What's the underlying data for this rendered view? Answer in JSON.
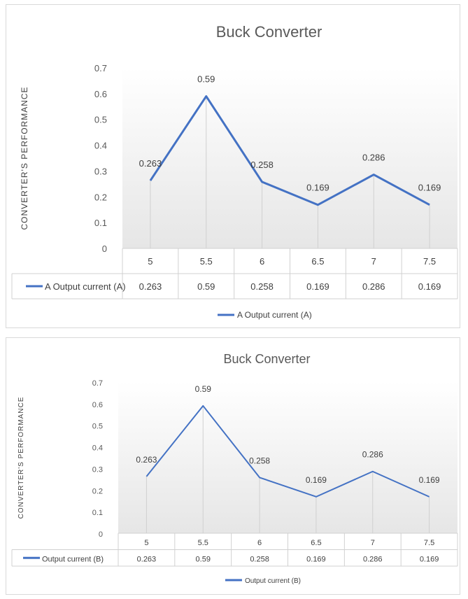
{
  "chart_data": [
    {
      "type": "line",
      "title": "Buck Converter",
      "ylabel": "CONVERTER'S PERFORMANCE",
      "xlabel": "",
      "categories": [
        "5",
        "5.5",
        "6",
        "6.5",
        "7",
        "7.5"
      ],
      "series": [
        {
          "name": "A Output current (A)",
          "values": [
            0.263,
            0.59,
            0.258,
            0.169,
            0.286,
            0.169
          ],
          "color": "#4472c4"
        }
      ],
      "value_labels": [
        "0.263",
        "0.59",
        "0.258",
        "0.169",
        "0.286",
        "0.169"
      ],
      "y_ticks": [
        "0",
        "0.1",
        "0.2",
        "0.3",
        "0.4",
        "0.5",
        "0.6",
        "0.7"
      ],
      "ylim": [
        0,
        0.7
      ],
      "data_table": true,
      "legend_position": "bottom",
      "grid": false
    },
    {
      "type": "line",
      "title": "Buck Converter",
      "ylabel": "CONVERTER'S PERFORMANCE",
      "xlabel": "",
      "categories": [
        "5",
        "5.5",
        "6",
        "6.5",
        "7",
        "7.5"
      ],
      "series": [
        {
          "name": "Output current (B)",
          "values": [
            0.263,
            0.59,
            0.258,
            0.169,
            0.286,
            0.169
          ],
          "color": "#4472c4"
        }
      ],
      "value_labels": [
        "0.263",
        "0.59",
        "0.258",
        "0.169",
        "0.286",
        "0.169"
      ],
      "y_ticks": [
        "0",
        "0.1",
        "0.2",
        "0.3",
        "0.4",
        "0.5",
        "0.6",
        "0.7"
      ],
      "ylim": [
        0,
        0.7
      ],
      "data_table": true,
      "legend_position": "bottom",
      "grid": false
    }
  ]
}
